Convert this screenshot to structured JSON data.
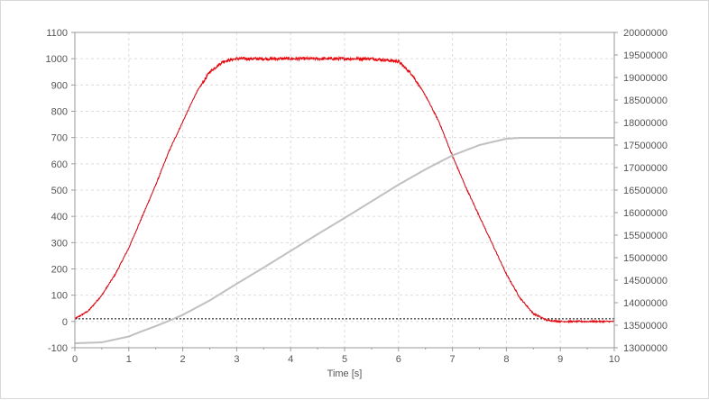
{
  "chart_data": {
    "type": "line",
    "xlabel": "Time [s]",
    "xlim": [
      0,
      10
    ],
    "x_ticks": [
      "0",
      "1",
      "2",
      "3",
      "4",
      "5",
      "6",
      "7",
      "8",
      "9",
      "10"
    ],
    "y_left": {
      "ylim": [
        -100,
        1100
      ],
      "ticks": [
        "-100",
        "0",
        "100",
        "200",
        "300",
        "400",
        "500",
        "600",
        "700",
        "800",
        "900",
        "1000",
        "1100"
      ]
    },
    "y_right": {
      "ylim": [
        13000000,
        20000000
      ],
      "ticks": [
        "13000000",
        "13500000",
        "14000000",
        "14500000",
        "15000000",
        "15500000",
        "16000000",
        "16500000",
        "17000000",
        "17500000",
        "18000000",
        "18500000",
        "19000000",
        "19500000",
        "20000000"
      ]
    },
    "grid": true,
    "reference_line": {
      "axis": "left",
      "y": 10,
      "style": "dashed",
      "color": "#000000"
    },
    "series": [
      {
        "axis": "left",
        "color": "#ff0000",
        "noisy": true,
        "x": [
          0,
          0.25,
          0.5,
          0.75,
          1,
          1.25,
          1.5,
          1.75,
          2,
          2.25,
          2.5,
          2.75,
          3,
          3.5,
          4,
          4.5,
          5,
          5.5,
          6,
          6.25,
          6.5,
          6.75,
          7,
          7.25,
          7.5,
          7.75,
          8,
          8.25,
          8.5,
          8.75,
          9,
          9.5,
          10
        ],
        "values": [
          10,
          40,
          100,
          180,
          280,
          400,
          520,
          650,
          760,
          870,
          950,
          990,
          1000,
          1000,
          1000,
          1000,
          1000,
          1000,
          990,
          940,
          860,
          760,
          630,
          510,
          400,
          290,
          180,
          90,
          30,
          5,
          0,
          0,
          0
        ]
      },
      {
        "axis": "right",
        "color": "#c0c0c0",
        "x": [
          0,
          0.5,
          1,
          1.25,
          1.5,
          1.75,
          2,
          2.5,
          3,
          3.5,
          4,
          4.5,
          5,
          5.5,
          6,
          6.5,
          7,
          7.5,
          8,
          8.25,
          8.5,
          9,
          9.5,
          10
        ],
        "values": [
          13100000,
          13120000,
          13250000,
          13370000,
          13480000,
          13600000,
          13730000,
          14050000,
          14420000,
          14780000,
          15150000,
          15520000,
          15880000,
          16250000,
          16620000,
          16960000,
          17270000,
          17500000,
          17640000,
          17660000,
          17660000,
          17660000,
          17660000,
          17660000
        ]
      }
    ]
  }
}
